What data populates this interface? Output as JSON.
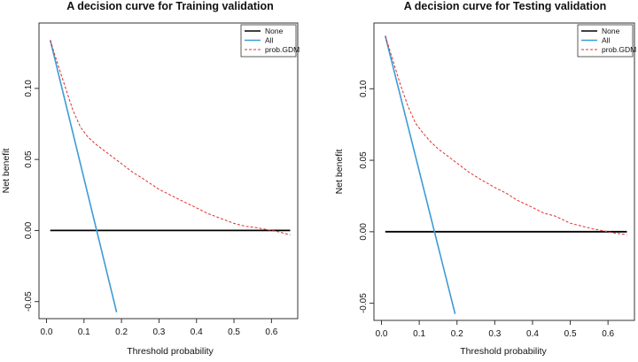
{
  "chart_data": [
    {
      "type": "line",
      "title": "A decision curve for Training validation",
      "xlabel": "Threshold probability",
      "ylabel": "Net benefit",
      "xlim": [
        -0.02,
        0.67
      ],
      "ylim": [
        -0.062,
        0.146
      ],
      "xticks": [
        0.0,
        0.1,
        0.2,
        0.3,
        0.4,
        0.5,
        0.6
      ],
      "xtick_labels": [
        "0.0",
        "0.1",
        "0.2",
        "0.3",
        "0.4",
        "0.5",
        "0.6"
      ],
      "yticks": [
        -0.05,
        0.0,
        0.05,
        0.1
      ],
      "ytick_labels": [
        "-0.05",
        "0.00",
        "0.05",
        "0.10"
      ],
      "legend": {
        "position": "top-right",
        "entries": [
          "None",
          "All",
          "prob.GDM"
        ]
      },
      "series": [
        {
          "name": "None",
          "color": "#000000",
          "style": "solid",
          "x": [
            0.01,
            0.65
          ],
          "y": [
            0.0,
            0.0
          ]
        },
        {
          "name": "All",
          "color": "#3d9bd6",
          "style": "solid",
          "x": [
            0.01,
            0.187
          ],
          "y": [
            0.134,
            -0.0575
          ]
        },
        {
          "name": "prob.GDM",
          "color": "#e03030",
          "style": "dashed",
          "x": [
            0.01,
            0.03,
            0.05,
            0.07,
            0.09,
            0.11,
            0.13,
            0.15,
            0.17,
            0.2,
            0.23,
            0.26,
            0.3,
            0.33,
            0.36,
            0.4,
            0.43,
            0.46,
            0.5,
            0.53,
            0.56,
            0.58,
            0.6,
            0.62,
            0.65
          ],
          "y": [
            0.134,
            0.117,
            0.101,
            0.085,
            0.073,
            0.066,
            0.061,
            0.057,
            0.053,
            0.047,
            0.041,
            0.036,
            0.029,
            0.025,
            0.021,
            0.016,
            0.012,
            0.009,
            0.005,
            0.003,
            0.002,
            0.001,
            0.0,
            -0.001,
            -0.003
          ]
        }
      ]
    },
    {
      "type": "line",
      "title": "A decision curve for Testing validation",
      "xlabel": "Threshold probability",
      "ylabel": "Net benefit",
      "xlim": [
        -0.02,
        0.67
      ],
      "ylim": [
        -0.062,
        0.146
      ],
      "xticks": [
        0.0,
        0.1,
        0.2,
        0.3,
        0.4,
        0.5,
        0.6
      ],
      "xtick_labels": [
        "0.0",
        "0.1",
        "0.2",
        "0.3",
        "0.4",
        "0.5",
        "0.6"
      ],
      "yticks": [
        -0.05,
        0.0,
        0.05,
        0.1
      ],
      "ytick_labels": [
        "-0.05",
        "0.00",
        "0.05",
        "0.10"
      ],
      "legend": {
        "position": "top-right",
        "entries": [
          "None",
          "All",
          "prob.GDM"
        ]
      },
      "series": [
        {
          "name": "None",
          "color": "#000000",
          "style": "solid",
          "x": [
            0.01,
            0.65
          ],
          "y": [
            0.0,
            0.0
          ]
        },
        {
          "name": "All",
          "color": "#3d9bd6",
          "style": "solid",
          "x": [
            0.01,
            0.195
          ],
          "y": [
            0.137,
            -0.0575
          ]
        },
        {
          "name": "prob.GDM",
          "color": "#e03030",
          "style": "dashed",
          "x": [
            0.01,
            0.03,
            0.05,
            0.07,
            0.09,
            0.11,
            0.13,
            0.15,
            0.17,
            0.2,
            0.23,
            0.26,
            0.3,
            0.33,
            0.36,
            0.4,
            0.43,
            0.46,
            0.5,
            0.53,
            0.56,
            0.58,
            0.6,
            0.62,
            0.65
          ],
          "y": [
            0.137,
            0.12,
            0.103,
            0.088,
            0.076,
            0.069,
            0.063,
            0.058,
            0.054,
            0.048,
            0.042,
            0.037,
            0.031,
            0.027,
            0.022,
            0.017,
            0.013,
            0.011,
            0.006,
            0.004,
            0.002,
            0.001,
            0.0,
            -0.001,
            -0.002
          ]
        }
      ]
    }
  ]
}
